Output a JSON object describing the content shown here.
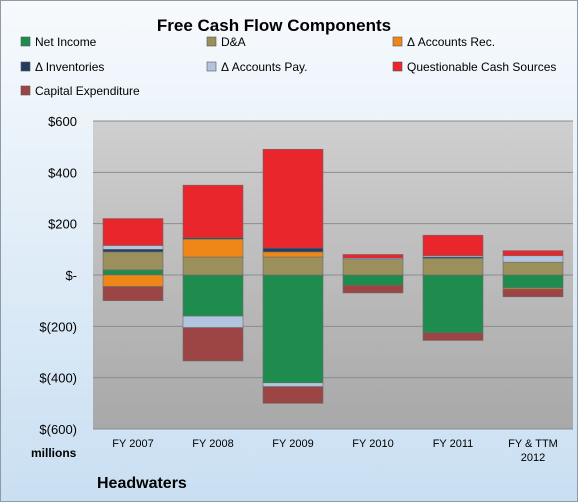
{
  "chart_data": {
    "type": "bar",
    "stacked": true,
    "title": "Free Cash Flow Components",
    "categories": [
      "FY 2007",
      "FY 2008",
      "FY 2009",
      "FY 2010",
      "FY 2011",
      "FY & TTM 2012"
    ],
    "category_lines": [
      [
        "FY 2007"
      ],
      [
        "FY 2008"
      ],
      [
        "FY 2009"
      ],
      [
        "FY 2010"
      ],
      [
        "FY 2011"
      ],
      [
        "FY & TTM",
        "2012"
      ]
    ],
    "series": [
      {
        "name": "Net Income",
        "color": "#1e8c4e",
        "values": [
          20,
          -160,
          -420,
          -40,
          -225,
          -50
        ]
      },
      {
        "name": "D&A",
        "color": "#9b8f5b",
        "values": [
          70,
          70,
          70,
          60,
          65,
          50
        ]
      },
      {
        "name": "Δ Accounts Rec.",
        "color": "#ef8618",
        "values": [
          -45,
          70,
          20,
          0,
          0,
          -5
        ]
      },
      {
        "name": "Δ Inventories",
        "color": "#233c5e",
        "values": [
          10,
          5,
          15,
          0,
          5,
          0
        ]
      },
      {
        "name": "Δ Accounts Pay.",
        "color": "#b1c5de",
        "values": [
          15,
          -45,
          -15,
          5,
          5,
          25
        ]
      },
      {
        "name": "Questionable Cash Sources",
        "color": "#e8262b",
        "values": [
          105,
          205,
          385,
          15,
          80,
          20
        ]
      },
      {
        "name": "Capital Expenditure",
        "color": "#9c4544",
        "values": [
          -55,
          -130,
          -65,
          -30,
          -30,
          -30
        ]
      }
    ],
    "yticks": [
      600,
      400,
      200,
      0,
      -200,
      -400,
      -600
    ],
    "ytick_labels": [
      "$600",
      "$400",
      "$200",
      "$-",
      "$(200)",
      "$(400)",
      "$(600)"
    ],
    "ylim": [
      -600,
      600
    ],
    "yunit_label": "millions",
    "grid": true,
    "legend_position": "top",
    "company": "Headwaters"
  }
}
